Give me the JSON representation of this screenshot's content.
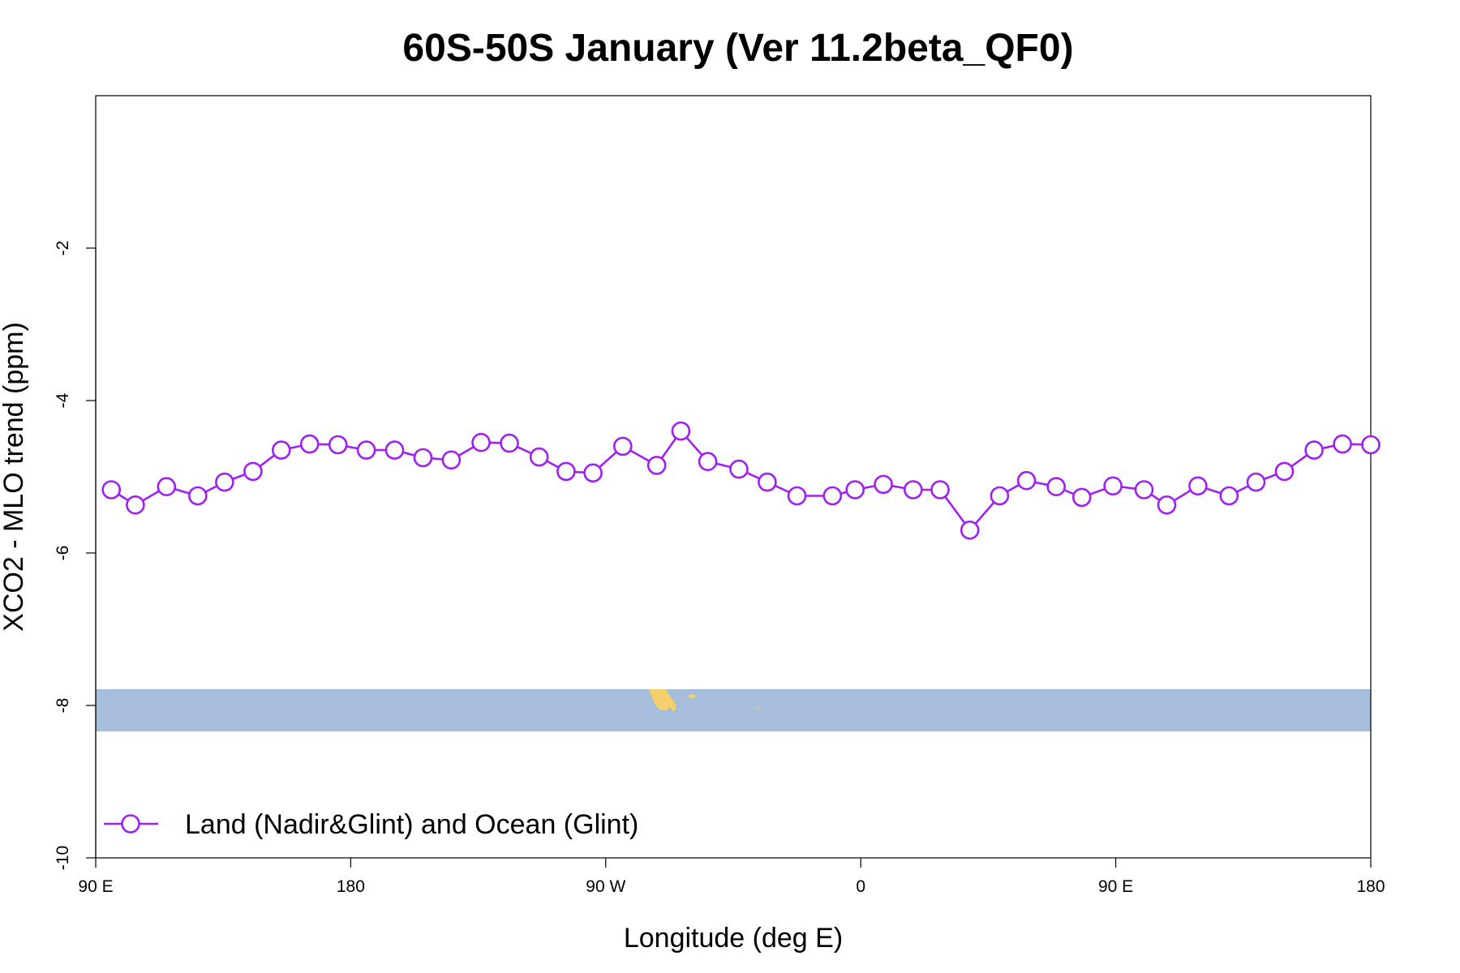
{
  "chart_data": {
    "type": "line",
    "title": "60S-50S January (Ver 11.2beta_QF0)",
    "xlabel": "Longitude (deg E)",
    "ylabel": "XCO2 - MLO trend (ppm)",
    "xlim": [
      90,
      540
    ],
    "ylim": [
      -10,
      0
    ],
    "x_ticks": [
      {
        "value": 90,
        "label": "90 E"
      },
      {
        "value": 180,
        "label": "180"
      },
      {
        "value": 270,
        "label": "90 W"
      },
      {
        "value": 360,
        "label": "0"
      },
      {
        "value": 450,
        "label": "90 E"
      },
      {
        "value": 540,
        "label": "180"
      }
    ],
    "y_ticks": [
      {
        "value": -2,
        "label": "-2"
      },
      {
        "value": -4,
        "label": "-4"
      },
      {
        "value": -6,
        "label": "-6"
      },
      {
        "value": -8,
        "label": "-8"
      },
      {
        "value": -10,
        "label": "-10"
      }
    ],
    "grid": false,
    "legend_position": "bottom-left",
    "series": [
      {
        "name": "Land (Nadir&Glint) and Ocean (Glint)",
        "color": "#a020f0",
        "marker": "open-circle",
        "x": [
          95.5,
          104,
          115,
          126,
          135.5,
          145.5,
          155.5,
          165.5,
          175.5,
          185.5,
          195.5,
          205.5,
          215.5,
          226,
          236,
          246.5,
          256,
          265.5,
          276,
          288,
          296.5,
          306,
          317,
          327,
          337.5,
          350,
          358,
          368,
          378.5,
          388,
          398.5,
          409,
          418.5,
          429,
          438,
          449,
          460,
          468,
          479,
          490,
          499.5,
          509.5,
          520,
          530,
          540
        ],
        "y": [
          -5.17,
          -5.37,
          -5.13,
          -5.25,
          -5.07,
          -4.93,
          -4.65,
          -4.57,
          -4.58,
          -4.65,
          -4.65,
          -4.75,
          -4.78,
          -4.55,
          -4.56,
          -4.74,
          -4.93,
          -4.95,
          -4.6,
          -4.85,
          -4.4,
          -4.8,
          -4.9,
          -5.07,
          -5.25,
          -5.25,
          -5.17,
          -5.1,
          -5.17,
          -5.17,
          -5.7,
          -5.25,
          -5.05,
          -5.13,
          -5.27,
          -5.12,
          -5.17,
          -5.37,
          -5.12,
          -5.25,
          -5.07,
          -4.93,
          -4.65,
          -4.57,
          -4.58
        ]
      }
    ],
    "background_map": {
      "lat_range": "60S-50S",
      "ocean_color": "#a7bddc",
      "land_color": "#f5cf6a"
    }
  }
}
